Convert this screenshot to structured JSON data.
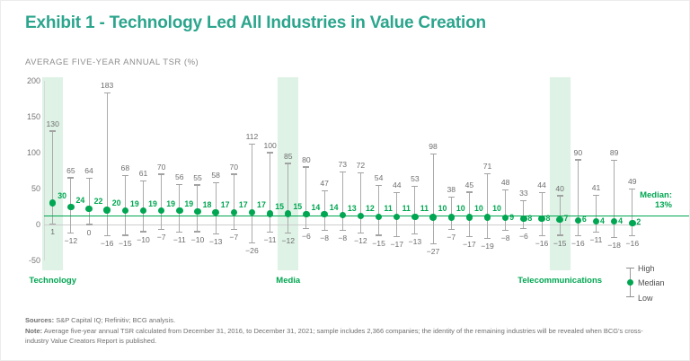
{
  "title": "Exhibit 1 - Technology Led All Industries in Value Creation",
  "subtitle": "AVERAGE FIVE-YEAR ANNUAL TSR (%)",
  "chart_data": {
    "type": "range",
    "title": "Exhibit 1 - Technology Led All Industries in Value Creation",
    "ylabel": "AVERAGE FIVE-YEAR ANNUAL TSR (%)",
    "ylim": [
      -50,
      200
    ],
    "yticks": [
      200,
      150,
      100,
      50,
      0,
      -50
    ],
    "grid": false,
    "legend_position": "bottom-right",
    "median_line": {
      "value": 13,
      "label": "Median:",
      "value_label": "13%"
    },
    "series": [
      {
        "high": 130,
        "median": 30,
        "low": 1,
        "highlight": true,
        "label": "Technology"
      },
      {
        "high": 65,
        "median": 24,
        "low": -12,
        "highlight": false,
        "label": ""
      },
      {
        "high": 64,
        "median": 22,
        "low": 0,
        "highlight": false,
        "label": ""
      },
      {
        "high": 183,
        "median": 20,
        "low": -16,
        "highlight": false,
        "label": ""
      },
      {
        "high": 68,
        "median": 19,
        "low": -15,
        "highlight": false,
        "label": ""
      },
      {
        "high": 61,
        "median": 19,
        "low": -10,
        "highlight": false,
        "label": ""
      },
      {
        "high": 70,
        "median": 19,
        "low": -7,
        "highlight": false,
        "label": ""
      },
      {
        "high": 56,
        "median": 19,
        "low": -11,
        "highlight": false,
        "label": ""
      },
      {
        "high": 55,
        "median": 18,
        "low": -10,
        "highlight": false,
        "label": ""
      },
      {
        "high": 58,
        "median": 17,
        "low": -13,
        "highlight": false,
        "label": ""
      },
      {
        "high": 70,
        "median": 17,
        "low": -7,
        "highlight": false,
        "label": ""
      },
      {
        "high": 112,
        "median": 17,
        "low": -26,
        "highlight": false,
        "label": ""
      },
      {
        "high": 100,
        "median": 15,
        "low": -11,
        "highlight": false,
        "label": ""
      },
      {
        "high": 85,
        "median": 15,
        "low": -12,
        "highlight": true,
        "label": "Media"
      },
      {
        "high": 80,
        "median": 14,
        "low": -6,
        "highlight": false,
        "label": ""
      },
      {
        "high": 47,
        "median": 14,
        "low": -8,
        "highlight": false,
        "label": ""
      },
      {
        "high": 73,
        "median": 13,
        "low": -8,
        "highlight": false,
        "label": ""
      },
      {
        "high": 72,
        "median": 12,
        "low": -12,
        "highlight": false,
        "label": ""
      },
      {
        "high": 54,
        "median": 11,
        "low": -15,
        "highlight": false,
        "label": ""
      },
      {
        "high": 44,
        "median": 11,
        "low": -17,
        "highlight": false,
        "label": ""
      },
      {
        "high": 53,
        "median": 11,
        "low": -13,
        "highlight": false,
        "label": ""
      },
      {
        "high": 98,
        "median": 10,
        "low": -27,
        "highlight": false,
        "label": ""
      },
      {
        "high": 38,
        "median": 10,
        "low": -7,
        "highlight": false,
        "label": ""
      },
      {
        "high": 45,
        "median": 10,
        "low": -17,
        "highlight": false,
        "label": ""
      },
      {
        "high": 71,
        "median": 10,
        "low": -19,
        "highlight": false,
        "label": ""
      },
      {
        "high": 48,
        "median": 9,
        "low": -8,
        "highlight": false,
        "label": ""
      },
      {
        "high": 33,
        "median": 8,
        "low": -6,
        "highlight": false,
        "label": ""
      },
      {
        "high": 44,
        "median": 8,
        "low": -16,
        "highlight": false,
        "label": ""
      },
      {
        "high": 40,
        "median": 7,
        "low": -15,
        "highlight": true,
        "label": "Telecommunications"
      },
      {
        "high": 90,
        "median": 6,
        "low": -16,
        "highlight": false,
        "label": ""
      },
      {
        "high": 41,
        "median": 4,
        "low": -11,
        "highlight": false,
        "label": ""
      },
      {
        "high": 89,
        "median": 4,
        "low": -18,
        "highlight": false,
        "label": ""
      },
      {
        "high": 49,
        "median": 2,
        "low": -16,
        "highlight": false,
        "label": ""
      }
    ]
  },
  "legend": {
    "items": [
      "High",
      "Median",
      "Low"
    ]
  },
  "footer": {
    "sources_label": "Sources:",
    "sources_text": "S&P Capital IQ; Refinitiv; BCG analysis.",
    "note_label": "Note:",
    "note_text": "Average five-year annual TSR calculated from December 31, 2016, to December 31, 2021; sample includes 2,366 companies; the identity of the remaining industries will be revealed when BCG's",
    "note_text_2": "cross-industry Value Creators Report is published."
  },
  "colors": {
    "accent_green": "#00A651",
    "title_teal": "#2CA58D",
    "highlight_band": "#DEF2E6",
    "range_line_gray": "#ABABAB",
    "value_label_gray": "#6E6E6E"
  }
}
